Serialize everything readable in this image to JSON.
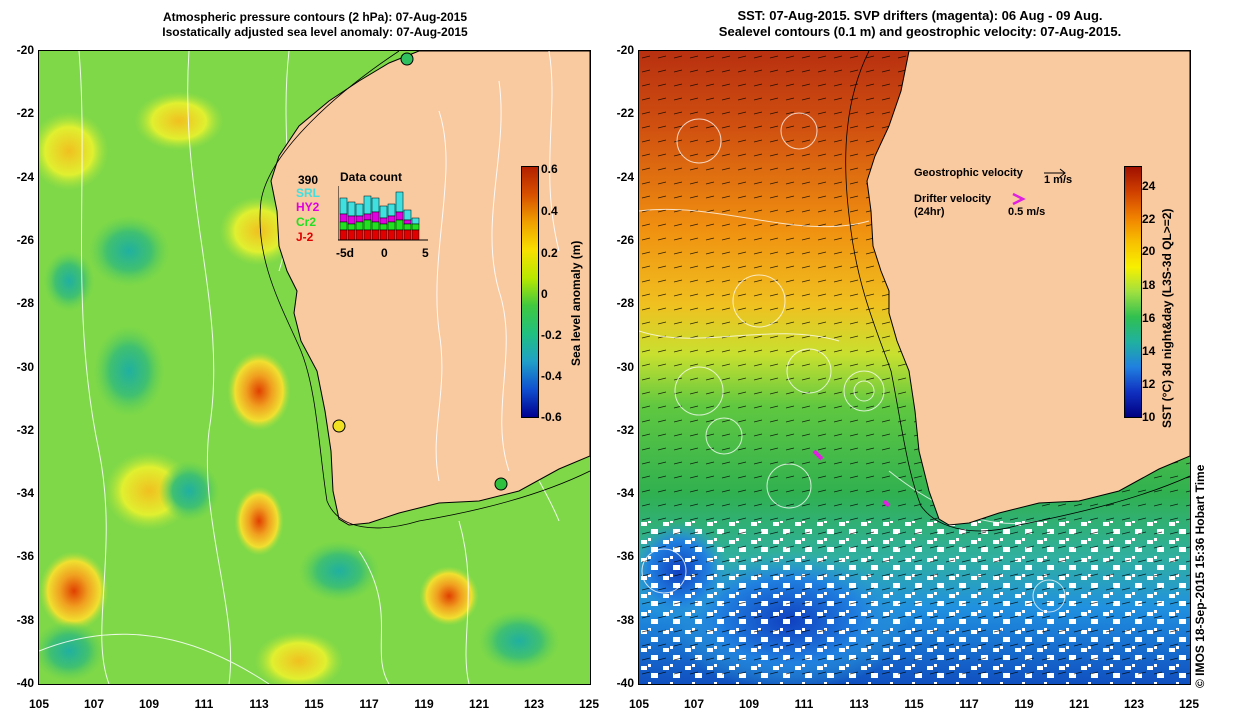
{
  "left_panel": {
    "title_line1": "Atmospheric pressure contours (2 hPa): 07-Aug-2015",
    "title_line2": "Isostatically adjusted sea level anomaly: 07-Aug-2015",
    "colorbar_label": "Sea level anomaly (m)",
    "colorbar_ticks": [
      "0.6",
      "0.4",
      "0.2",
      "0",
      "-0.2",
      "-0.4",
      "-0.6"
    ],
    "inset": {
      "count": "390",
      "title": "Data count",
      "satellites": [
        {
          "name": "SRL",
          "color": "#40e0e0"
        },
        {
          "name": "HY2",
          "color": "#e000e0"
        },
        {
          "name": "Cr2",
          "color": "#20e020"
        },
        {
          "name": "J-2",
          "color": "#e00000"
        }
      ],
      "x_ticks": [
        "-5d",
        "0",
        "5"
      ]
    }
  },
  "right_panel": {
    "title_line1": "SST: 07-Aug-2015. SVP drifters (magenta): 06 Aug - 09 Aug.",
    "title_line2": "Sealevel contours (0.1 m) and geostrophic velocity: 07-Aug-2015.",
    "colorbar_label": "SST (°C) 3d night&day (L3S-3d QL>=2)",
    "colorbar_ticks": [
      "24",
      "22",
      "20",
      "18",
      "16",
      "14",
      "12",
      "10"
    ],
    "legend": {
      "geo_label": "Geostrophic velocity",
      "geo_scale": "1 m/s",
      "drifter_label": "Drifter velocity",
      "drifter_sub": "(24hr)",
      "drifter_scale": "0.5 m/s"
    }
  },
  "axes": {
    "y_ticks": [
      "-20",
      "-22",
      "-24",
      "-26",
      "-28",
      "-30",
      "-32",
      "-34",
      "-36",
      "-38",
      "-40"
    ],
    "x_ticks": [
      "105",
      "107",
      "109",
      "111",
      "113",
      "115",
      "117",
      "119",
      "121",
      "123",
      "125"
    ]
  },
  "footer": {
    "copyright": "© IMOS 18-Sep-2015 15:36 Hobart Time"
  },
  "colors": {
    "land": "#f9c9a0",
    "sla_base": "#7ed848",
    "sst_warm": "#e07020",
    "sst_mid": "#3cc050",
    "sst_cool": "#2080d0"
  }
}
